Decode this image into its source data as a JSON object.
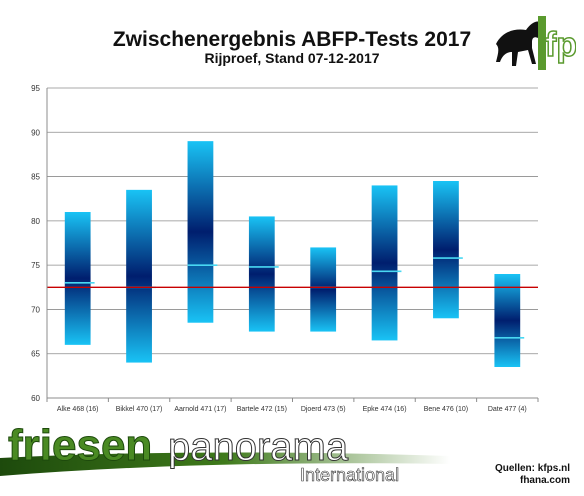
{
  "header": {
    "title": "Zwischenergebnis ABFP-Tests 2017",
    "subtitle": "Rijproef, Stand 07-12-2017",
    "logo_text": "fp"
  },
  "chart_data": {
    "type": "bar",
    "title": "Zwischenergebnis ABFP-Tests 2017",
    "subtitle": "Rijproef, Stand 07-12-2017",
    "xlabel": "",
    "ylabel": "",
    "ylim": [
      60,
      95
    ],
    "yticks": [
      60,
      65,
      70,
      75,
      80,
      85,
      90,
      95
    ],
    "grid": true,
    "legend": "none",
    "categories": [
      "Alke 468 (16)",
      "Bikkel 470 (17)",
      "Aarnold 471 (17)",
      "Bartele 472 (15)",
      "Djoerd 473 (5)",
      "Epke 474 (16)",
      "Bene 476 (10)",
      "Date 477 (4)"
    ],
    "series": [
      {
        "low": [
          66.0,
          64.0,
          68.5,
          67.5,
          67.5,
          66.5,
          69.0,
          63.5
        ],
        "high": [
          81.0,
          83.5,
          89.0,
          80.5,
          77.0,
          84.0,
          84.5,
          74.0
        ],
        "mean": [
          73.0,
          72.5,
          75.0,
          74.8,
          72.5,
          74.3,
          75.8,
          66.8
        ]
      }
    ],
    "reference_line": 72.5,
    "colors": {
      "bar_edge": "#19c3f5",
      "bar_center": "#001e6e",
      "mean_mark": "#49d8f2",
      "reference_line": "#c80000",
      "axis": "#8c8c8c"
    }
  },
  "footer": {
    "brand_main": "friesen",
    "brand_second": "panorama",
    "brand_sub": "International",
    "sources_line1": "Quellen: kfps.nl",
    "sources_line2": "fhana.com"
  }
}
